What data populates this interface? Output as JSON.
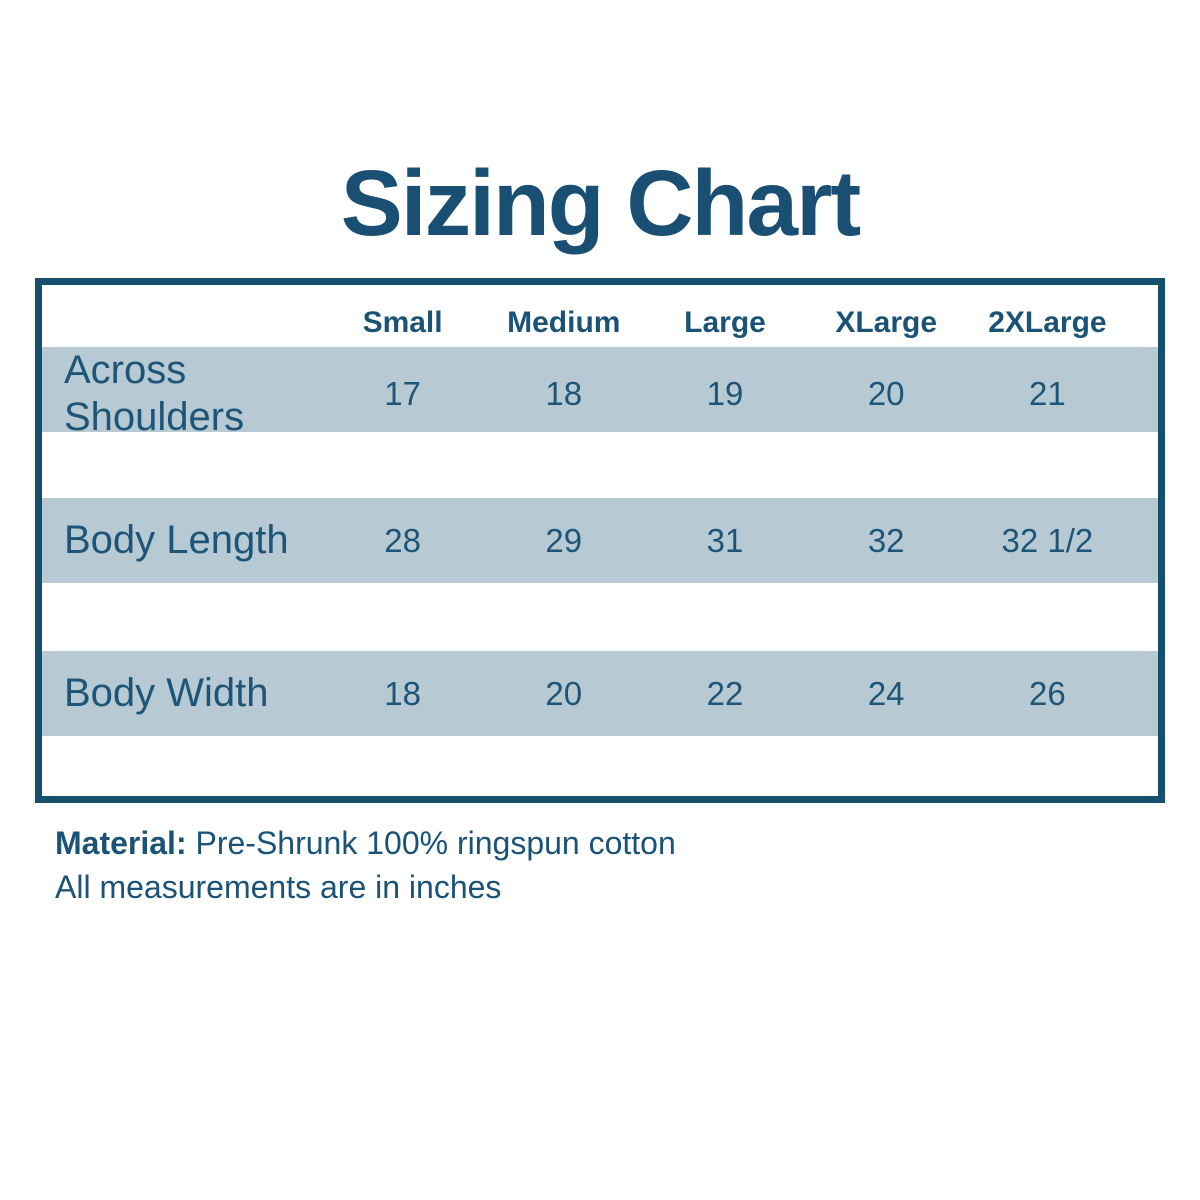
{
  "chart_data": {
    "type": "table",
    "title": "Sizing Chart",
    "columns": [
      "Small",
      "Medium",
      "Large",
      "XLarge",
      "2XLarge"
    ],
    "rows": [
      {
        "label": "Across Shoulders",
        "values": [
          "17",
          "18",
          "19",
          "20",
          "21"
        ]
      },
      {
        "label": "Body Length",
        "values": [
          "28",
          "29",
          "31",
          "32",
          "32 1/2"
        ]
      },
      {
        "label": "Body Width",
        "values": [
          "18",
          "20",
          "22",
          "24",
          "26"
        ]
      }
    ],
    "units": "inches",
    "layout": {
      "row_stripe": "alternating bands",
      "legend": "none",
      "grid": "off"
    }
  },
  "footer": {
    "material_label": "Material:",
    "material_text": " Pre-Shrunk 100% ringspun cotton",
    "measurements_note": "All measurements are in inches"
  },
  "colors": {
    "title_text": "#1a4f74",
    "table_text": "#1d5578",
    "border": "#15506e",
    "row_band": "#b7c9d3",
    "background": "#ffffff"
  }
}
